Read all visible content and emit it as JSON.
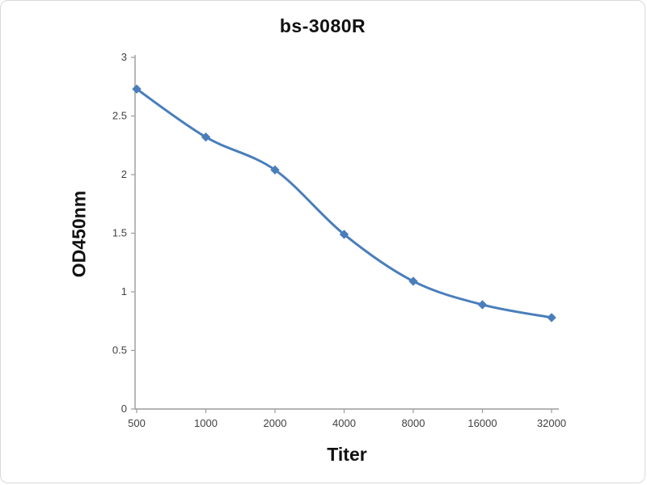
{
  "chart_data": {
    "type": "line",
    "title": "bs-3080R",
    "xlabel": "Titer",
    "ylabel": "OD450nm",
    "categories": [
      "500",
      "1000",
      "2000",
      "4000",
      "8000",
      "16000",
      "32000"
    ],
    "series": [
      {
        "name": "OD450nm",
        "values": [
          2.73,
          2.32,
          2.04,
          1.49,
          1.09,
          0.89,
          0.78
        ]
      }
    ],
    "y_ticks": [
      "0",
      "0.5",
      "1",
      "1.5",
      "2",
      "2.5",
      "3"
    ],
    "ylim": [
      0,
      3
    ],
    "grid": false,
    "legend_position": "none",
    "marker": "diamond",
    "line_color": "#4a7ebb",
    "axis_color": "#9b9b9b"
  }
}
